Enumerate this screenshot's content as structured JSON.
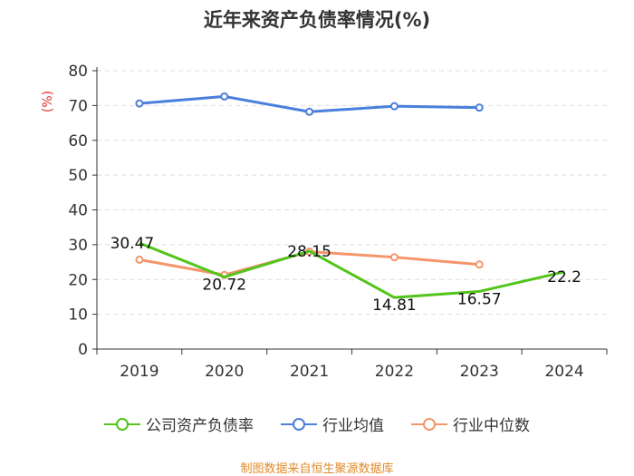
{
  "chart_data": {
    "type": "line",
    "title": "近年来资产负债率情况(%)",
    "ylabel": "(%)",
    "xlabel": "",
    "categories": [
      "2019",
      "2020",
      "2021",
      "2022",
      "2023",
      "2024"
    ],
    "ylim": [
      0,
      80
    ],
    "yticks": [
      0,
      10,
      20,
      30,
      40,
      50,
      60,
      70,
      80
    ],
    "grid": true,
    "legend_position": "bottom",
    "series": [
      {
        "name": "公司资产负债率",
        "color": "#52c41a",
        "values": [
          30.47,
          20.72,
          28.15,
          14.81,
          16.57,
          22.2
        ],
        "labels": [
          "30.47",
          "20.72",
          "28.15",
          "14.81",
          "16.57",
          "22.2"
        ]
      },
      {
        "name": "行业均值",
        "color": "#4a7fdc",
        "values": [
          70.6,
          72.6,
          68.2,
          69.8,
          69.4,
          null
        ]
      },
      {
        "name": "行业中位数",
        "color": "#f4956a",
        "values": [
          25.7,
          21.3,
          28.0,
          26.4,
          24.3,
          null
        ]
      }
    ]
  },
  "source": "制图数据来自恒生聚源数据库"
}
